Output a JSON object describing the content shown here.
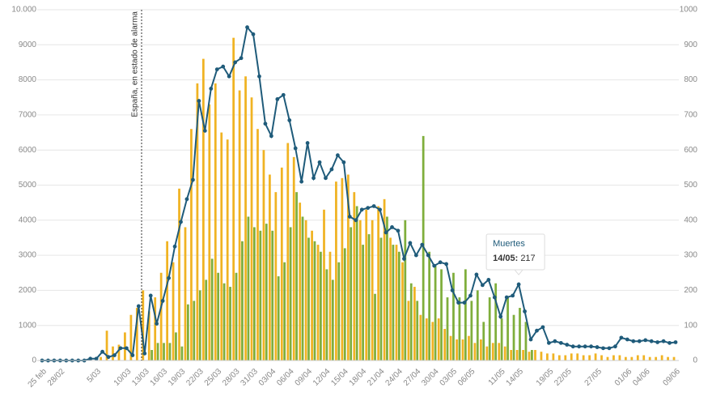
{
  "chart_data": {
    "type": "bar-line",
    "categories": [
      "25 feb",
      null,
      null,
      "28/02",
      null,
      null,
      null,
      null,
      null,
      "5/03",
      null,
      null,
      null,
      null,
      "10/03",
      null,
      null,
      "13/03",
      null,
      null,
      "16/03",
      null,
      null,
      "19/03",
      null,
      null,
      "22/03",
      null,
      null,
      "25/03",
      null,
      null,
      "28/03",
      null,
      null,
      "31/03",
      null,
      null,
      "03/04",
      null,
      null,
      "06/04",
      null,
      null,
      "09/04",
      null,
      null,
      "12/04",
      null,
      null,
      "15/04",
      null,
      null,
      "18/04",
      null,
      null,
      "21/04",
      null,
      null,
      "24/04",
      null,
      null,
      "27/04",
      null,
      null,
      "30/04",
      null,
      null,
      "03/05",
      null,
      null,
      "06/05",
      null,
      null,
      null,
      null,
      "11/05",
      null,
      null,
      "14/05",
      null,
      null,
      null,
      null,
      "19/05",
      null,
      null,
      "22/05",
      null,
      null,
      null,
      null,
      "27/05",
      null,
      null,
      null,
      null,
      "01/06",
      null,
      null,
      "04/06",
      null,
      null,
      null,
      null,
      "09/06"
    ],
    "series": [
      {
        "color": "#f0b323",
        "values": [
          0,
          0,
          0,
          0,
          0,
          0,
          0,
          0,
          0,
          0,
          100,
          850,
          400,
          450,
          800,
          1300,
          1500,
          2000,
          1400,
          1800,
          2500,
          3400,
          2800,
          4900,
          3800,
          6600,
          7900,
          8600,
          7300,
          7900,
          6500,
          6300,
          9200,
          7700,
          8100,
          7500,
          6600,
          6000,
          5300,
          4800,
          5500,
          6200,
          5800,
          4500,
          4000,
          3700,
          3300,
          4300,
          3100,
          5100,
          5200,
          5300,
          4800,
          4000,
          4300,
          4000,
          4400,
          4600,
          3500,
          3300,
          2800,
          1700,
          2100,
          1300,
          1200,
          1100,
          1200,
          900,
          700,
          600,
          600,
          700,
          500,
          600,
          400,
          500,
          500,
          400,
          300,
          300,
          300,
          250,
          300,
          250,
          200,
          200,
          150,
          150,
          200,
          200,
          150,
          150,
          200,
          150,
          100,
          150,
          150,
          100,
          100,
          150,
          150,
          100,
          100,
          150,
          100,
          100
        ]
      },
      {
        "color": "#7fae3c",
        "values": [
          0,
          0,
          0,
          0,
          0,
          0,
          0,
          0,
          0,
          0,
          0,
          0,
          0,
          0,
          0,
          0,
          0,
          0,
          300,
          500,
          500,
          500,
          800,
          400,
          1600,
          1700,
          2000,
          2300,
          2900,
          2500,
          2200,
          2100,
          2500,
          3400,
          4100,
          3800,
          3700,
          3900,
          3700,
          2400,
          2800,
          3800,
          4800,
          4100,
          3500,
          3400,
          3100,
          2600,
          2300,
          2800,
          3200,
          3800,
          4400,
          3300,
          3600,
          1900,
          3500,
          4100,
          3300,
          3100,
          4000,
          2200,
          1700,
          6400,
          3100,
          2700,
          2600,
          1800,
          2500,
          1800,
          2600,
          1700,
          2000,
          1100,
          1800,
          2200,
          1200,
          1800,
          1300,
          1500,
          1100,
          300,
          0,
          0,
          0,
          0,
          0,
          0,
          0,
          0,
          0,
          0,
          0,
          0,
          0,
          0,
          0,
          0,
          0,
          0,
          0,
          0,
          0,
          0,
          0,
          0
        ]
      },
      {
        "name": "Muertes",
        "color": "#1f5b7a",
        "axis": "y2",
        "values": [
          0,
          0,
          0,
          0,
          0,
          0,
          0,
          0,
          5,
          5,
          25,
          10,
          15,
          35,
          35,
          15,
          155,
          20,
          185,
          105,
          170,
          235,
          325,
          395,
          460,
          515,
          740,
          655,
          775,
          830,
          838,
          810,
          850,
          862,
          950,
          930,
          810,
          675,
          640,
          745,
          757,
          685,
          605,
          510,
          620,
          520,
          565,
          520,
          545,
          585,
          565,
          410,
          400,
          430,
          435,
          440,
          430,
          365,
          380,
          370,
          290,
          335,
          300,
          330,
          300,
          270,
          280,
          275,
          200,
          165,
          165,
          185,
          245,
          215,
          230,
          180,
          125,
          180,
          185,
          217,
          140,
          60,
          85,
          95,
          50,
          55,
          50,
          45,
          40,
          40,
          40,
          40,
          38,
          35,
          35,
          40,
          65,
          60,
          55,
          55,
          58,
          55,
          52,
          55,
          50,
          52
        ]
      }
    ],
    "ylim": [
      0,
      10000
    ],
    "yticks": [
      0,
      1000,
      2000,
      3000,
      4000,
      5000,
      6000,
      7000,
      8000,
      9000,
      {
        "value": 10000,
        "label": "10.000"
      }
    ],
    "y2lim": [
      0,
      1000
    ],
    "y2ticks": [
      0,
      100,
      200,
      300,
      400,
      500,
      600,
      700,
      800,
      900,
      1000
    ],
    "grid": true,
    "annotation": "España, en estado de alarma",
    "tooltip": {
      "date": "14/05:"
    }
  }
}
